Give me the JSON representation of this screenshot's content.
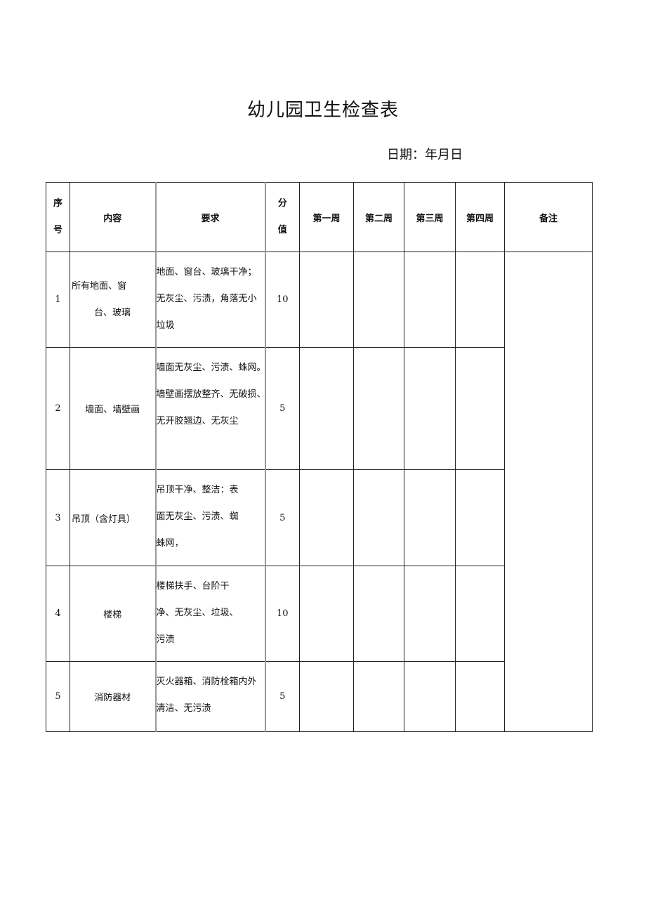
{
  "title": "幼儿园卫生检查表",
  "date_label": "日期：年月日",
  "table": {
    "headers": {
      "no": [
        "序",
        "号"
      ],
      "content": "内容",
      "requirement": "要求",
      "score": [
        "分",
        "值"
      ],
      "week1": "第一周",
      "week2": "第二周",
      "week3": "第三周",
      "week4": "第四周",
      "remarks": "备注"
    },
    "rows": [
      {
        "no": "1",
        "content": [
          "所有地面、窗",
          "台、玻璃"
        ],
        "requirement": [
          "地面、窗台、玻璃干净；",
          "无灰尘、污渍，角落无小",
          "垃圾"
        ],
        "score": "10"
      },
      {
        "no": "2",
        "content": [
          "墙面、墙壁画"
        ],
        "requirement": [
          "墙面无灰尘、污渍、蛛网。",
          "墙壁画摆放整齐、无破损、",
          "无开胶翘边、无灰尘"
        ],
        "score": "5"
      },
      {
        "no": "3",
        "content": [
          "吊顶（含灯具）"
        ],
        "requirement": [
          "吊顶干净、整洁：表",
          "面无灰尘、污渍、蜘",
          "蛛网，"
        ],
        "score": "5"
      },
      {
        "no": "4",
        "content": [
          "楼梯"
        ],
        "requirement": [
          "楼梯扶手、台阶干",
          "净、无灰尘、垃圾、",
          "污渍"
        ],
        "score": "10"
      },
      {
        "no": "5",
        "content": [
          "消防器材"
        ],
        "requirement": [
          "灭火器箱、消防栓箱内外",
          "清洁、无污渍"
        ],
        "score": "5"
      }
    ]
  }
}
